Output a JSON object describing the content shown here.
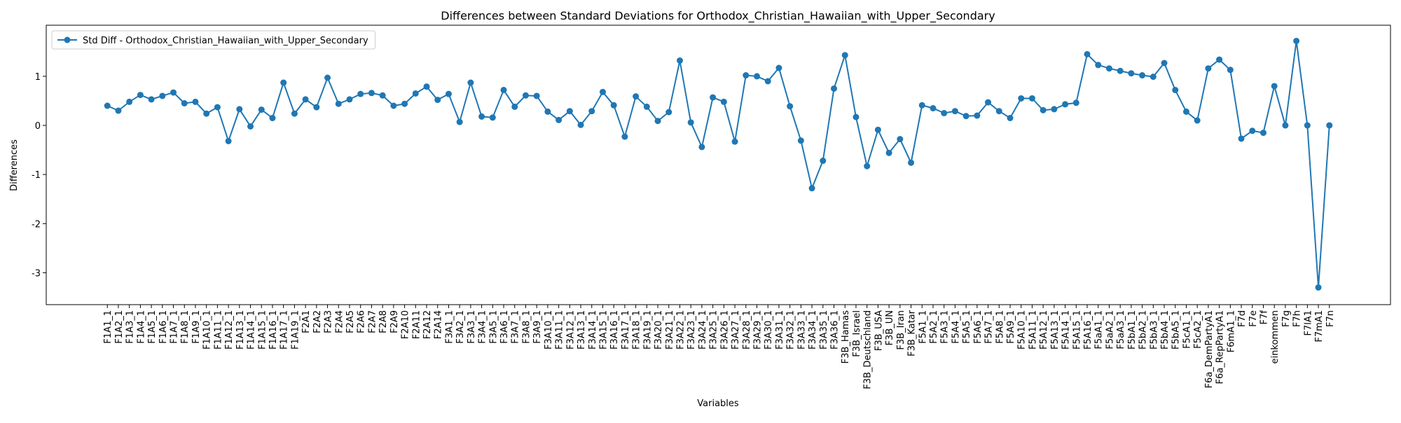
{
  "chart_data": {
    "type": "line",
    "title": "Differences between Standard Deviations for Orthodox_Christian_Hawaiian_with_Upper_Secondary",
    "x_label": "Variables",
    "y_label": "Differences",
    "categories": [
      "F1A1_1",
      "F1A2_1",
      "F1A3_1",
      "F1A4_1",
      "F1A5_1",
      "F1A6_1",
      "F1A7_1",
      "F1A8_1",
      "F1A9_1",
      "F1A10_1",
      "F1A11_1",
      "F1A12_1",
      "F1A13_1",
      "F1A14_1",
      "F1A15_1",
      "F1A16_1",
      "F1A17_1",
      "F1A19_1",
      "F2A1",
      "F2A2",
      "F2A3",
      "F2A4",
      "F2A5",
      "F2A6",
      "F2A7",
      "F2A8",
      "F2A9",
      "F2A10",
      "F2A11",
      "F2A12",
      "F2A14",
      "F3A1_1",
      "F3A2_1",
      "F3A3_1",
      "F3A4_1",
      "F3A5_1",
      "F3A6_1",
      "F3A7_1",
      "F3A8_1",
      "F3A9_1",
      "F3A10_1",
      "F3A11_1",
      "F3A12_1",
      "F3A13_1",
      "F3A14_1",
      "F3A15_1",
      "F3A16_1",
      "F3A17_1",
      "F3A18_1",
      "F3A19_1",
      "F3A20_1",
      "F3A21_1",
      "F3A22_1",
      "F3A23_1",
      "F3A24_1",
      "F3A25_1",
      "F3A26_1",
      "F3A27_1",
      "F3A28_1",
      "F3A29_1",
      "F3A30_1",
      "F3A31_1",
      "F3A32_1",
      "F3A33_1",
      "F3A34_1",
      "F3A35_1",
      "F3A36_1",
      "F3B_Hamas",
      "F3B_Israel",
      "F3B_Deutschland",
      "F3B_USA",
      "F3B_UN",
      "F3B_Iran",
      "F3B_Katar",
      "F5A1_1",
      "F5A2_1",
      "F5A3_1",
      "F5A4_1",
      "F5A5_1",
      "F5A6_1",
      "F5A7_1",
      "F5A8_1",
      "F5A9_1",
      "F5A10_1",
      "F5A11_1",
      "F5A12_1",
      "F5A13_1",
      "F5A14_1",
      "F5A15_1",
      "F5A16_1",
      "F5aA1_1",
      "F5aA2_1",
      "F5aA3_1",
      "F5bA1_1",
      "F5bA2_1",
      "F5bA3_1",
      "F5bA4_1",
      "F5bA5_1",
      "F5cA1_1",
      "F5cA2_1",
      "F6a_DemPartyA1",
      "F6a_RepPartyA1",
      "F6mA1_1",
      "F7d",
      "F7e",
      "F7f",
      "einkommen",
      "F7g",
      "F7h",
      "F7lA1",
      "F7mA1",
      "F7n"
    ],
    "series": [
      {
        "name": "Std Diff - Orthodox_Christian_Hawaiian_with_Upper_Secondary",
        "color": "#1f77b4",
        "values": [
          0.4,
          0.3,
          0.48,
          0.62,
          0.53,
          0.6,
          0.67,
          0.45,
          0.48,
          0.24,
          0.37,
          -0.32,
          0.33,
          -0.02,
          0.32,
          0.15,
          0.87,
          0.24,
          0.53,
          0.37,
          0.97,
          0.44,
          0.53,
          0.64,
          0.66,
          0.61,
          0.4,
          0.44,
          0.65,
          0.79,
          0.52,
          0.64,
          0.07,
          0.87,
          0.18,
          0.16,
          0.72,
          0.38,
          0.61,
          0.6,
          0.28,
          0.11,
          0.29,
          0.01,
          0.29,
          0.68,
          0.41,
          -0.23,
          0.59,
          0.38,
          0.09,
          0.27,
          1.32,
          0.06,
          -0.44,
          0.57,
          0.48,
          -0.33,
          1.02,
          1.0,
          0.9,
          1.17,
          0.39,
          -0.31,
          -1.28,
          -0.72,
          0.75,
          1.43,
          0.17,
          -0.83,
          -0.09,
          -0.56,
          -0.28,
          -0.76,
          0.41,
          0.35,
          0.25,
          0.29,
          0.19,
          0.2,
          0.47,
          0.29,
          0.15,
          0.55,
          0.55,
          0.31,
          0.33,
          0.43,
          0.46,
          1.45,
          1.23,
          1.16,
          1.11,
          1.06,
          1.02,
          0.99,
          1.27,
          0.72,
          0.28,
          0.1,
          1.16,
          1.34,
          1.13,
          -0.27,
          -0.11,
          -0.15,
          0.8,
          0.0,
          1.72,
          0.0,
          -3.3,
          0.0
        ]
      }
    ],
    "ylim": [
      -3.65,
      2.04
    ],
    "yticks": [
      -3,
      -2,
      -1,
      0,
      1
    ],
    "grid": false,
    "legend": "upper left"
  }
}
